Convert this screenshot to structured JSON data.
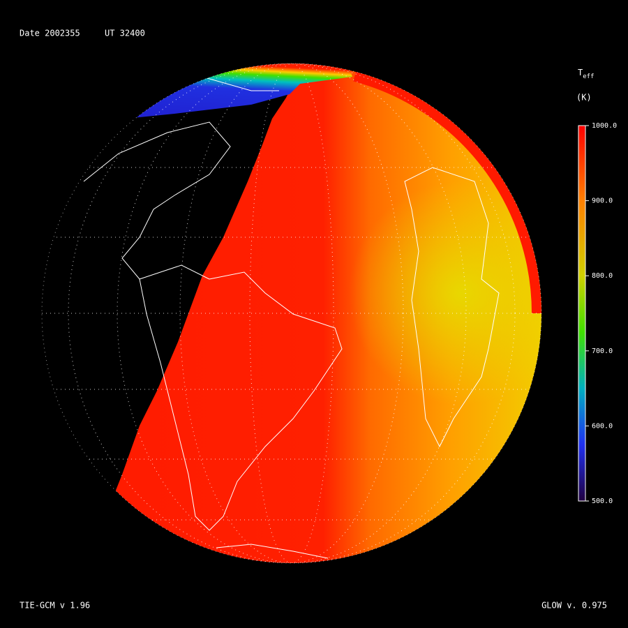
{
  "header": {
    "date": "Date 2002355",
    "ut": "UT 32400"
  },
  "colorbar": {
    "title": "T",
    "title_sub": "eff",
    "unit": "(K)",
    "lim": [
      500,
      1000
    ],
    "ticks": [
      {
        "value": 1000,
        "label": "1000.0"
      },
      {
        "value": 900,
        "label": "900.0"
      },
      {
        "value": 800,
        "label": "800.0"
      },
      {
        "value": 700,
        "label": "700.0"
      },
      {
        "value": 600,
        "label": "600.0"
      },
      {
        "value": 500,
        "label": "500.0"
      }
    ]
  },
  "footer": {
    "left": "TIE-GCM v 1.96",
    "right": "GLOW v. 0.975"
  }
}
